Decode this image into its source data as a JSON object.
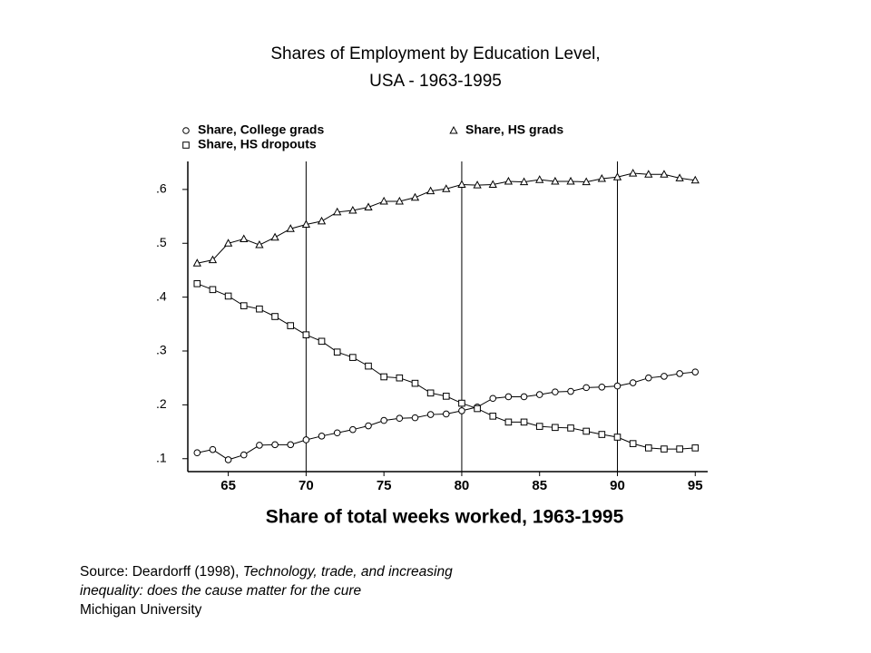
{
  "chart_data": {
    "type": "line",
    "title": [
      "Shares of Employment by Education Level,",
      "USA - 1963-1995"
    ],
    "x_label": "Share of total weeks worked, 1963-1995",
    "x": [
      63,
      64,
      65,
      66,
      67,
      68,
      69,
      70,
      71,
      72,
      73,
      74,
      75,
      76,
      77,
      78,
      79,
      80,
      81,
      82,
      83,
      84,
      85,
      86,
      87,
      88,
      89,
      90,
      91,
      92,
      93,
      94,
      95
    ],
    "series": [
      {
        "name": "Share, College grads",
        "color": "#000000",
        "marker": "circle",
        "values": [
          0.111,
          0.117,
          0.098,
          0.107,
          0.125,
          0.126,
          0.126,
          0.135,
          0.142,
          0.148,
          0.154,
          0.161,
          0.171,
          0.175,
          0.176,
          0.182,
          0.183,
          0.189,
          0.196,
          0.212,
          0.215,
          0.215,
          0.219,
          0.224,
          0.225,
          0.232,
          0.233,
          0.235,
          0.241,
          0.25,
          0.253,
          0.258,
          0.261
        ]
      },
      {
        "name": "Share, HS grads",
        "color": "#000000",
        "marker": "triangle",
        "values": [
          0.463,
          0.469,
          0.5,
          0.508,
          0.497,
          0.511,
          0.527,
          0.535,
          0.541,
          0.558,
          0.561,
          0.567,
          0.578,
          0.578,
          0.585,
          0.597,
          0.601,
          0.609,
          0.608,
          0.609,
          0.615,
          0.614,
          0.618,
          0.615,
          0.615,
          0.614,
          0.62,
          0.623,
          0.63,
          0.628,
          0.628,
          0.621,
          0.617
        ]
      },
      {
        "name": "Share, HS dropouts",
        "color": "#000000",
        "marker": "square",
        "values": [
          0.425,
          0.414,
          0.402,
          0.384,
          0.378,
          0.364,
          0.347,
          0.33,
          0.318,
          0.298,
          0.288,
          0.272,
          0.252,
          0.25,
          0.24,
          0.222,
          0.216,
          0.203,
          0.193,
          0.179,
          0.168,
          0.168,
          0.16,
          0.158,
          0.157,
          0.151,
          0.145,
          0.14,
          0.128,
          0.12,
          0.118,
          0.118,
          0.12
        ]
      }
    ],
    "xlim": [
      62.4,
      95.8
    ],
    "xticks": [
      65,
      70,
      75,
      80,
      85,
      90,
      95
    ],
    "ylim": [
      0.076,
      0.652
    ],
    "yticks": [
      {
        "value": 0.1,
        "label": ".1"
      },
      {
        "value": 0.2,
        "label": ".2"
      },
      {
        "value": 0.3,
        "label": ".3"
      },
      {
        "value": 0.4,
        "label": ".4"
      },
      {
        "value": 0.5,
        "label": ".5"
      },
      {
        "value": 0.6,
        "label": ".6"
      }
    ],
    "vlines": [
      70,
      80,
      90
    ],
    "legend": "top"
  },
  "source": {
    "prefix": "Source: Deardorff (1998),",
    "title": "Technology, trade, and increasing inequality: does the cause matter for the cure",
    "publisher": "Michigan University"
  }
}
